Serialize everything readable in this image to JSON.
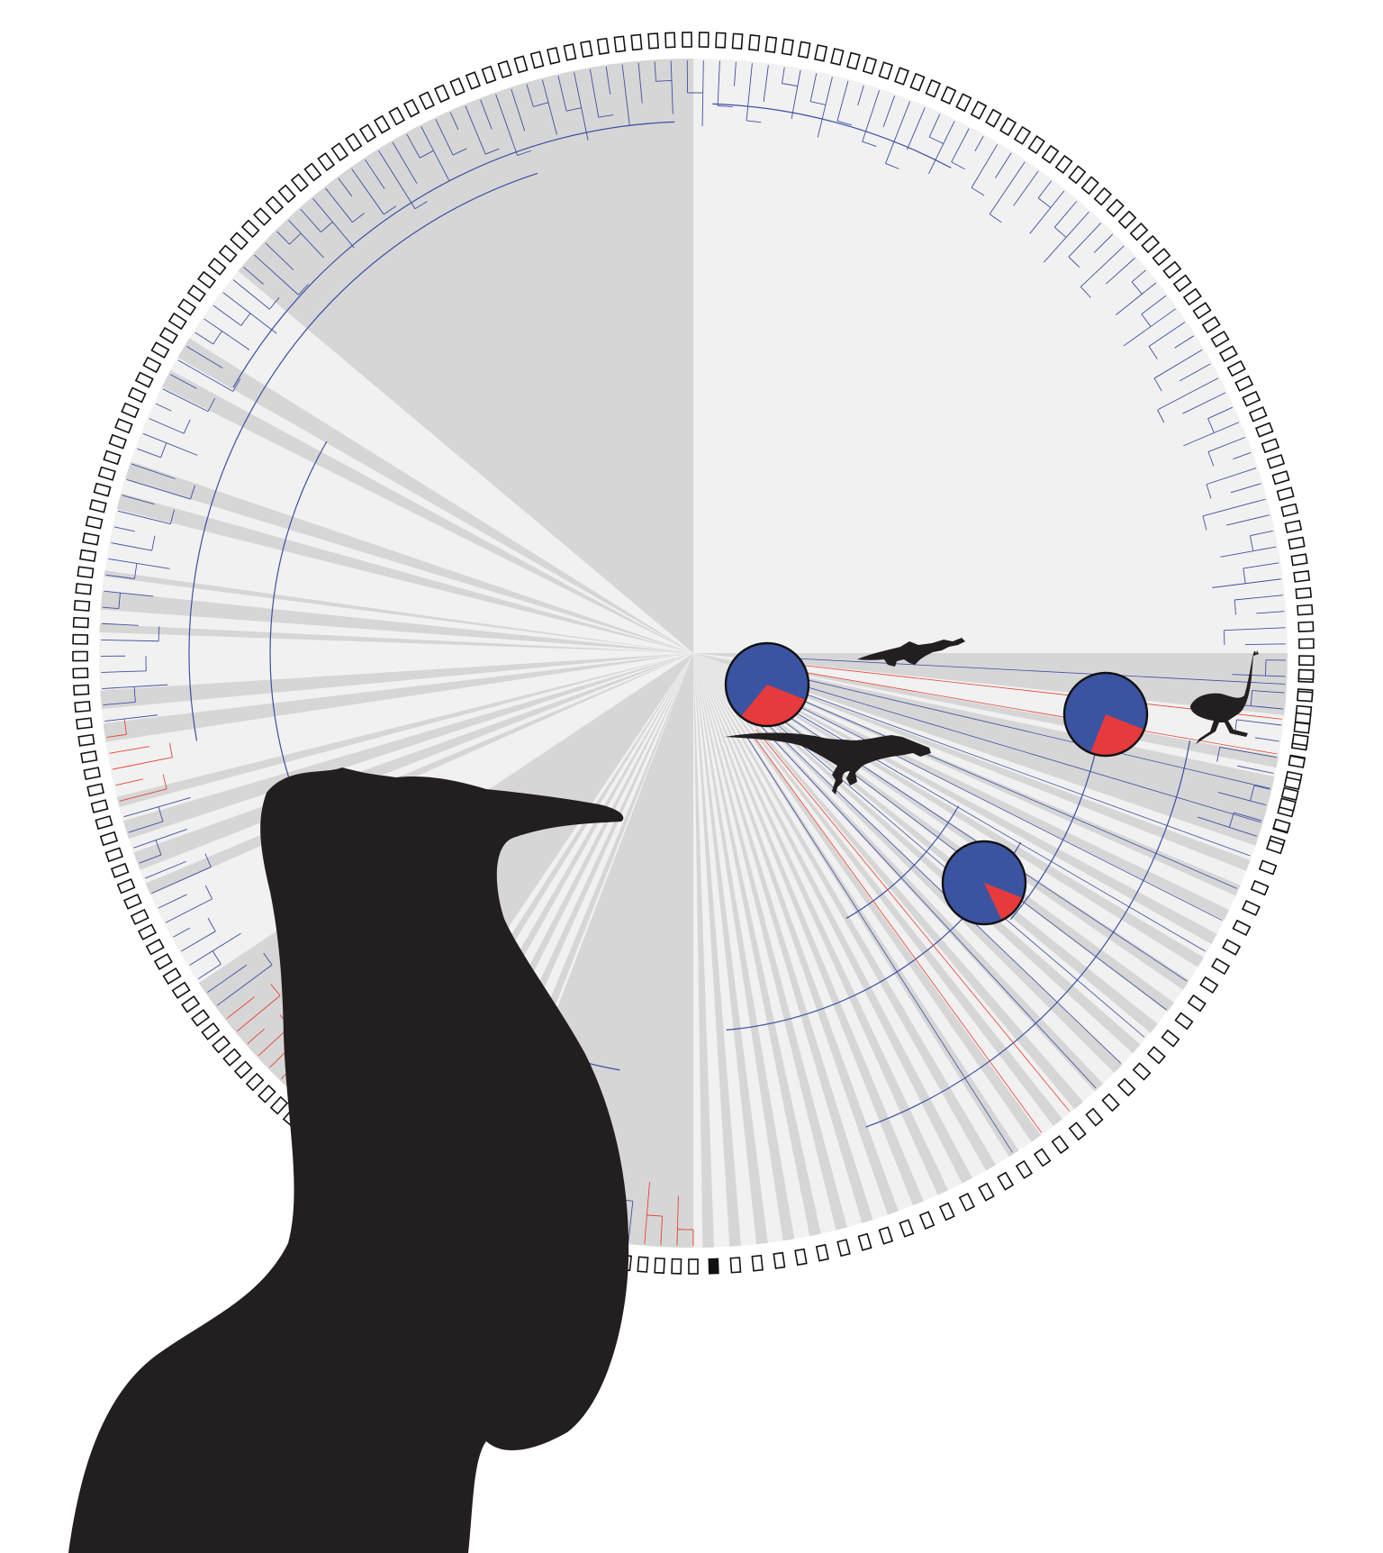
{
  "figure": {
    "type": "circular-phylogeny",
    "colors": {
      "background": "#ffffff",
      "wedge_dark": "#d6d6d6",
      "wedge_light": "#f1f1f1",
      "branch_blue": "#3d4fa3",
      "branch_red": "#e8412f",
      "tip_box_stroke": "#111111",
      "tip_box_filled": "#111111",
      "pie_blue": "#3a54a2",
      "pie_red": "#e63a3c",
      "silhouette": "#231f20"
    },
    "icons": [
      "crocodile-silhouette",
      "ostrich-silhouette",
      "dinosaur-silhouette",
      "bird-silhouette"
    ],
    "ancestral_state_pies": [
      {
        "state_red_fraction": 0.3
      },
      {
        "state_red_fraction": 0.25
      },
      {
        "state_red_fraction": 0.12
      }
    ]
  }
}
